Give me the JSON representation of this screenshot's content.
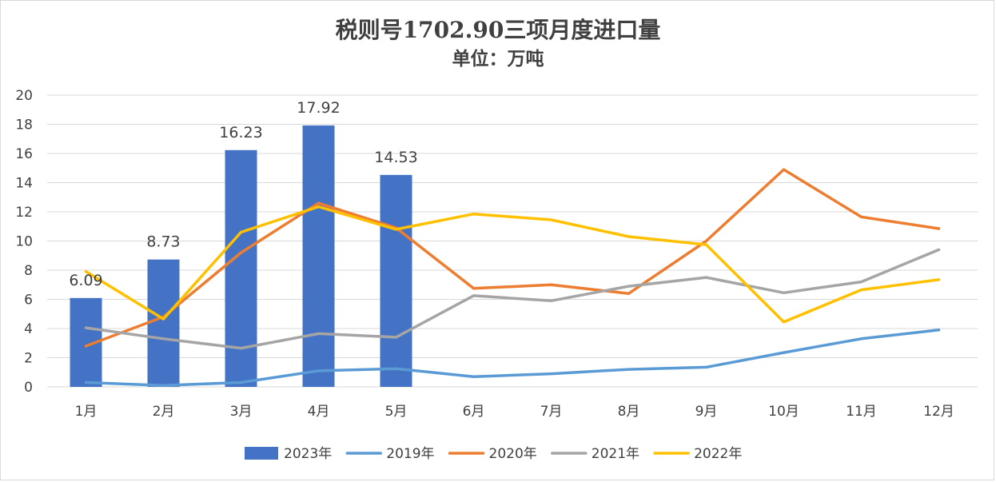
{
  "chart_data": {
    "type": "bar+line",
    "title": "税则号1702.90三项月度进口量",
    "subtitle": "单位：万吨",
    "categories": [
      "1月",
      "2月",
      "3月",
      "4月",
      "5月",
      "6月",
      "7月",
      "8月",
      "9月",
      "10月",
      "11月",
      "12月"
    ],
    "yticks": [
      "0",
      "2",
      "4",
      "6",
      "8",
      "10",
      "12",
      "14",
      "16",
      "18",
      "20"
    ],
    "ylim": [
      0,
      20
    ],
    "grid": true,
    "legend_position": "bottom",
    "bar_series": {
      "name": "2023年",
      "color": "#4472C4",
      "values": [
        6.09,
        8.73,
        16.23,
        17.92,
        14.53
      ],
      "labels": [
        "6.09",
        "8.73",
        "16.23",
        "17.92",
        "14.53"
      ]
    },
    "line_series": [
      {
        "name": "2019年",
        "color": "#5B9BD5",
        "values": [
          0.3,
          0.1,
          0.3,
          1.1,
          1.25,
          0.7,
          0.9,
          1.2,
          1.35,
          2.35,
          3.3,
          3.9
        ]
      },
      {
        "name": "2020年",
        "color": "#ED7D31",
        "values": [
          2.8,
          4.8,
          9.2,
          12.6,
          10.9,
          6.75,
          7.0,
          6.4,
          10.0,
          14.9,
          11.65,
          10.85
        ]
      },
      {
        "name": "2021年",
        "color": "#A5A5A5",
        "values": [
          4.05,
          3.3,
          2.65,
          3.65,
          3.4,
          6.25,
          5.9,
          6.9,
          7.5,
          6.45,
          7.2,
          9.4
        ]
      },
      {
        "name": "2022年",
        "color": "#FFC000",
        "values": [
          7.9,
          4.65,
          10.6,
          12.35,
          10.8,
          11.85,
          11.45,
          10.3,
          9.75,
          4.45,
          6.65,
          7.35
        ]
      }
    ]
  }
}
